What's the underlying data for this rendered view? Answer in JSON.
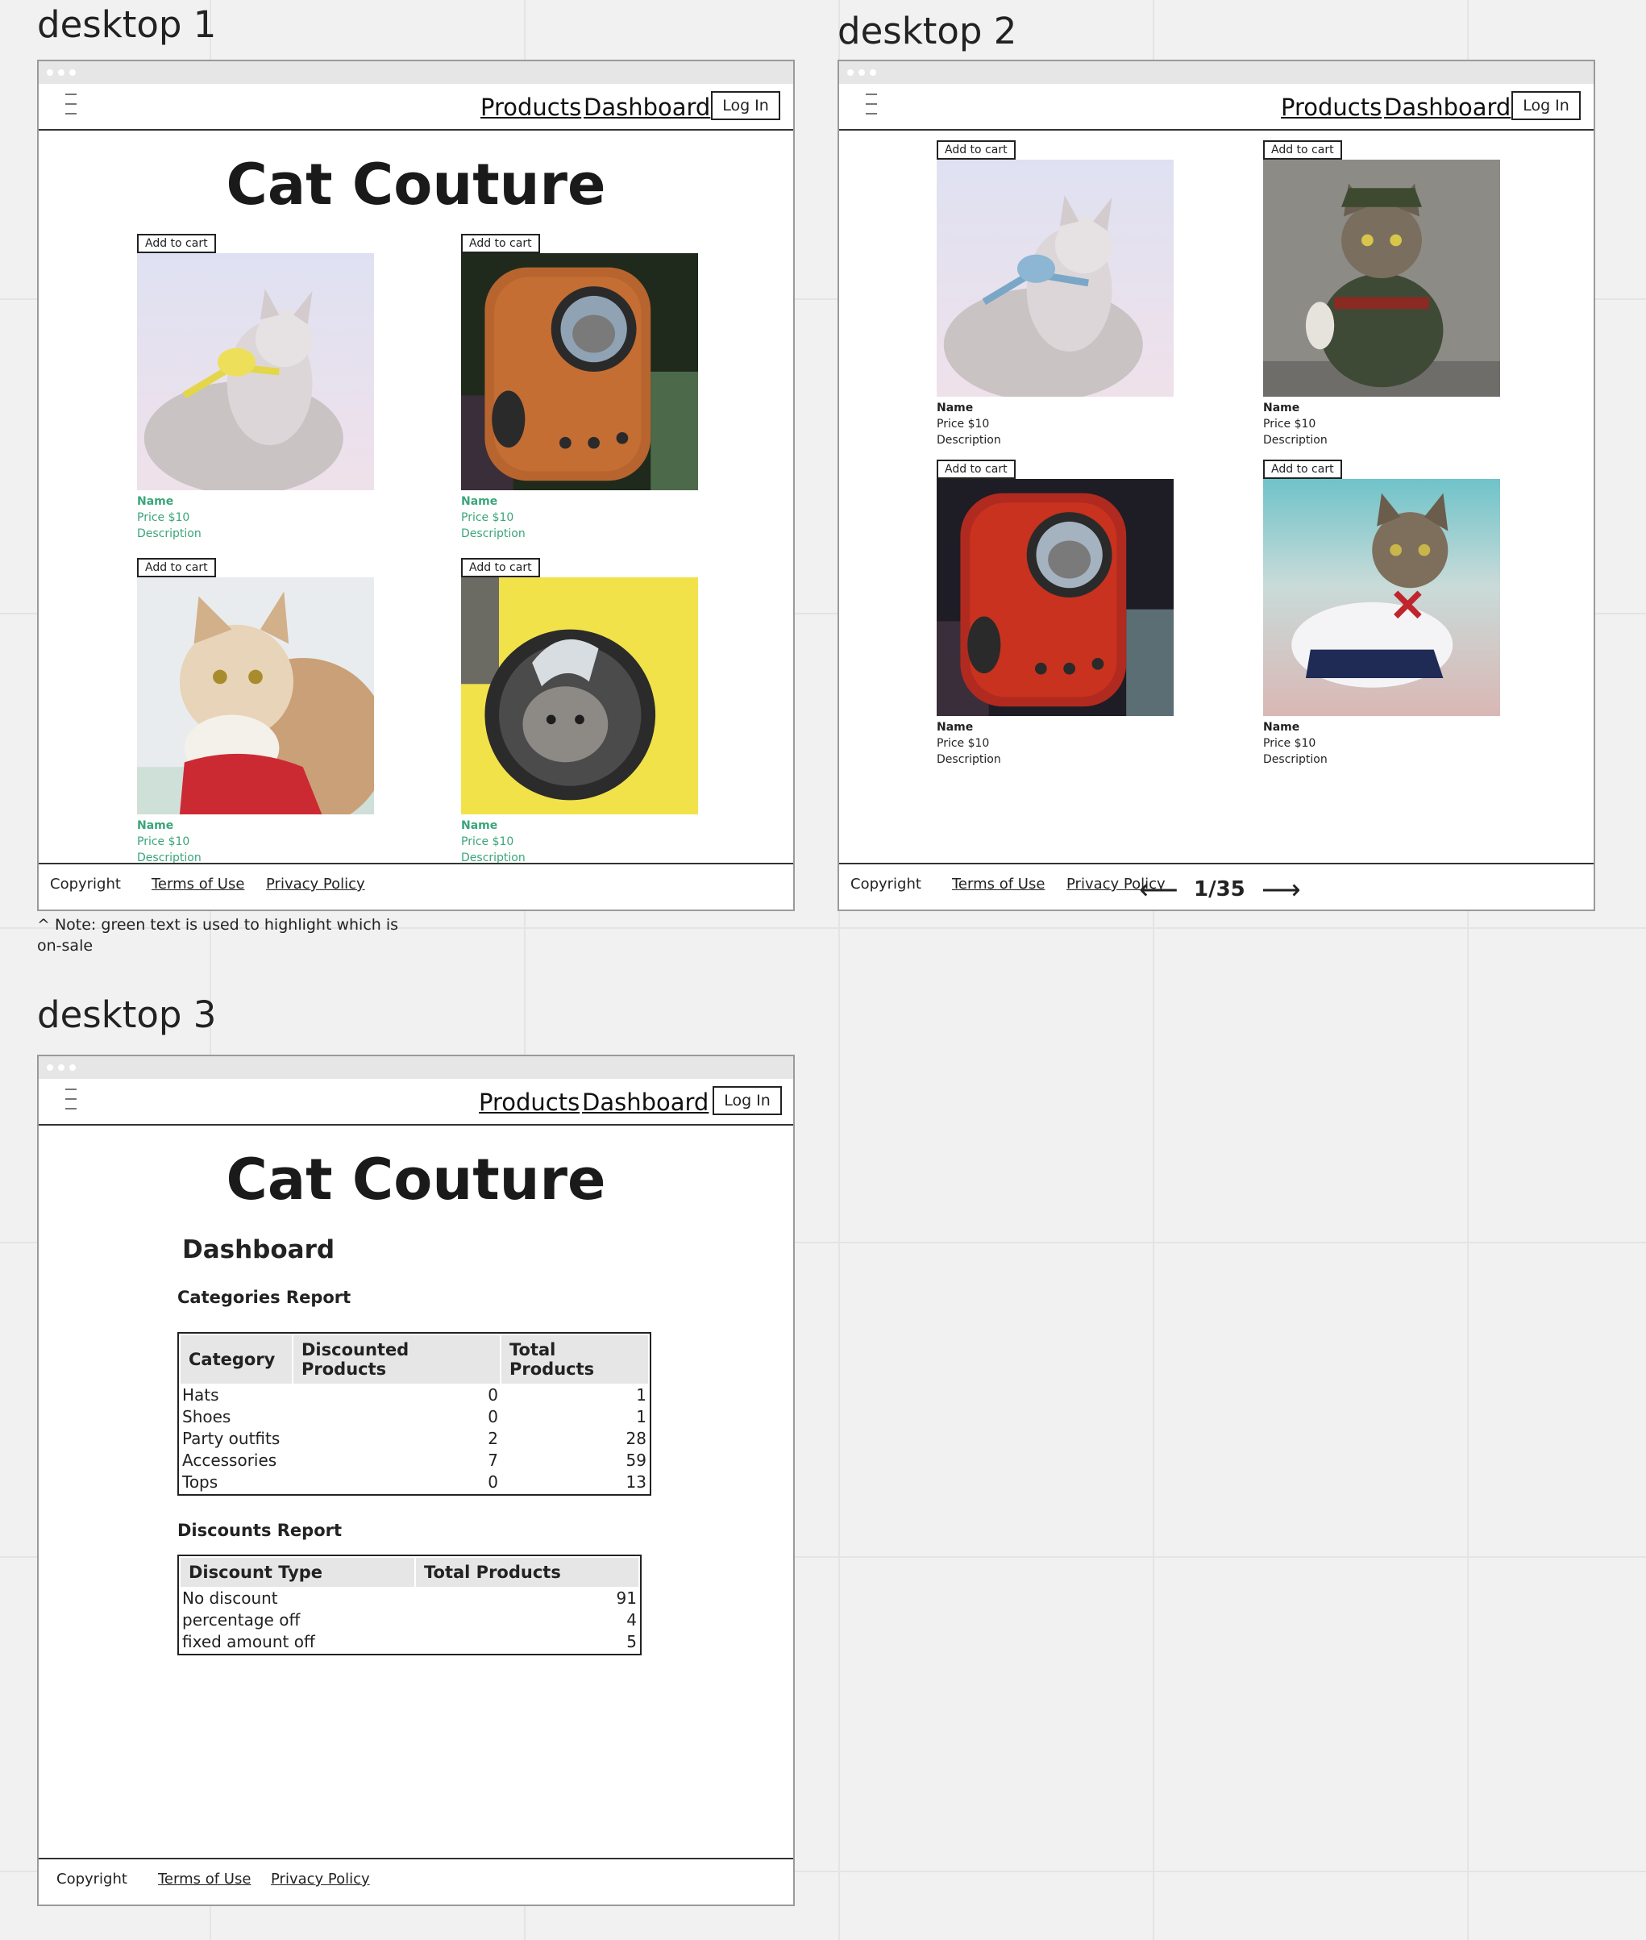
{
  "frames": [
    {
      "label": "desktop 1"
    },
    {
      "label": "desktop 2"
    },
    {
      "label": "desktop 3"
    }
  ],
  "nav": {
    "products": "Products",
    "dashboard": "Dashboard",
    "login": "Log In"
  },
  "site_title": "Cat Couture",
  "card": {
    "add_to_cart": "Add to cart",
    "name": "Name",
    "price": "Price $10",
    "description": "Description"
  },
  "footer": {
    "copyright": "Copyright",
    "terms": "Terms of Use",
    "privacy": "Privacy Policy"
  },
  "note": "^ Note: green text is used to highlight which is on-sale",
  "pagination": {
    "page": "1/35",
    "prev": "⟵",
    "next": "⟶"
  },
  "dashboard": {
    "title": "Dashboard",
    "categories_title": "Categories Report",
    "categories_headers": [
      "Category",
      "Discounted Products",
      "Total Products"
    ],
    "categories_rows": [
      [
        "Hats",
        "0",
        "1"
      ],
      [
        "Shoes",
        "0",
        "1"
      ],
      [
        "Party outfits",
        "2",
        "28"
      ],
      [
        "Accessories",
        "7",
        "59"
      ],
      [
        "Tops",
        "0",
        "13"
      ]
    ],
    "discounts_title": "Discounts Report",
    "discounts_headers": [
      "Discount Type",
      "Total Products"
    ],
    "discounts_rows": [
      [
        "No discount",
        "91"
      ],
      [
        "percentage off",
        "4"
      ],
      [
        "fixed amount off",
        "5"
      ]
    ]
  },
  "colors": {
    "sale_green": "#3aa57a",
    "nav_border": "#333333",
    "titlebar": "#e6e6e6"
  }
}
